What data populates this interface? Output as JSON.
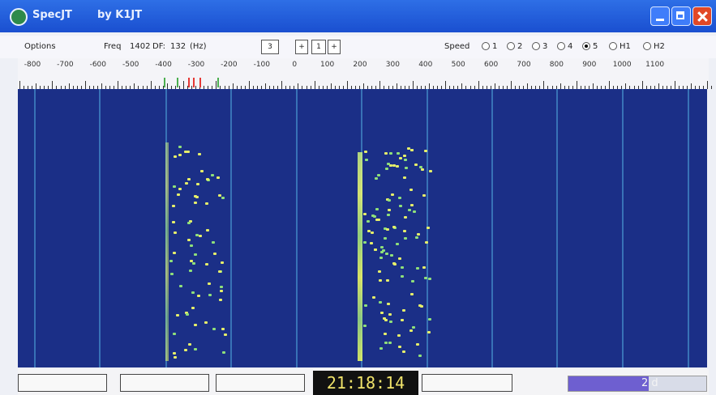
{
  "window": {
    "title": "SpecJT",
    "author": "by K1JT"
  },
  "toolbar": {
    "options_label": "Options",
    "freq_label": "Freq",
    "freq_value": "1402",
    "df_label": "DF:",
    "df_value": "132",
    "df_unit": "(Hz)",
    "field_value": "3",
    "stepper_up": "+",
    "stepper_value": "1",
    "stepper_down": "+",
    "speed_label": "Speed",
    "speed_options": [
      "1",
      "2",
      "3",
      "4",
      "5",
      "H1",
      "H2"
    ],
    "speed_selected": "5"
  },
  "scale": {
    "labels": [
      "-800",
      "-700",
      "-600",
      "-500",
      "-400",
      "-300",
      "-200",
      "-100",
      "0",
      "100",
      "200",
      "300",
      "400",
      "500",
      "600",
      "700",
      "800",
      "900",
      "1000",
      "1100"
    ]
  },
  "colors": {
    "waterfall_bg": "#1b2f87",
    "signal": "#e6ef6a",
    "clock_text": "#f0e36a",
    "meter_fill": "#6e5fd0"
  },
  "status": {
    "time": "21:18:14",
    "meter_value": "2 d",
    "meter_level": 0.58
  }
}
